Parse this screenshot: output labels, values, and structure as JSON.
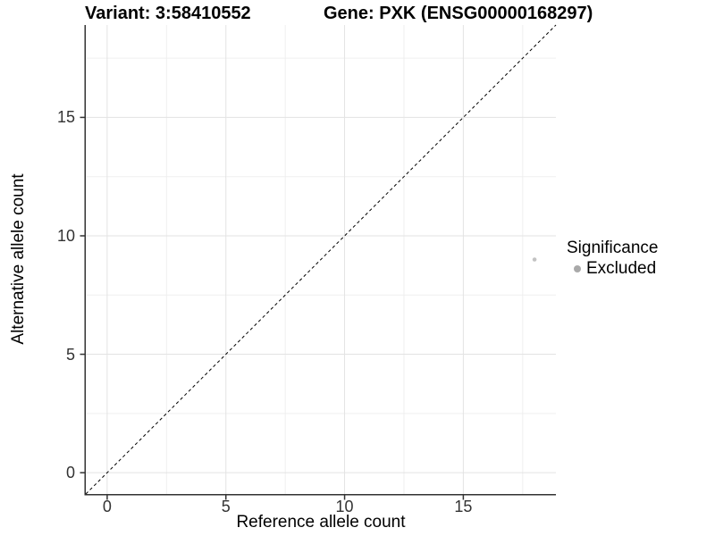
{
  "chart_data": {
    "type": "scatter",
    "titles": {
      "variant": "Variant: 3:58410552",
      "gene": "Gene: PXK (ENSG00000168297)"
    },
    "xlabel": "Reference allele count",
    "ylabel": "Alternative allele count",
    "xlim": [
      -0.9,
      18.9
    ],
    "ylim": [
      -0.9,
      18.9
    ],
    "xticks": [
      0,
      5,
      10,
      15
    ],
    "yticks": [
      0,
      5,
      10,
      15
    ],
    "minor_step": 2.5,
    "grid": true,
    "legend_position": "right",
    "series": [
      {
        "name": "Excluded",
        "color": "#c3c3c3",
        "points": [
          {
            "x": 18,
            "y": 9
          }
        ]
      }
    ],
    "identity_line": {
      "slope": 1,
      "intercept": 0,
      "style": "dashed",
      "color": "#000000"
    },
    "legend": {
      "title": "Significance",
      "items": [
        {
          "label": "Excluded",
          "marker_color": "#a9a9a9"
        }
      ]
    },
    "colors": {
      "grid_major": "#e3e3e3",
      "grid_minor": "#efefef",
      "axis_line": "#333333",
      "tick_mark": "#333333",
      "tick_label": "#333333"
    }
  }
}
